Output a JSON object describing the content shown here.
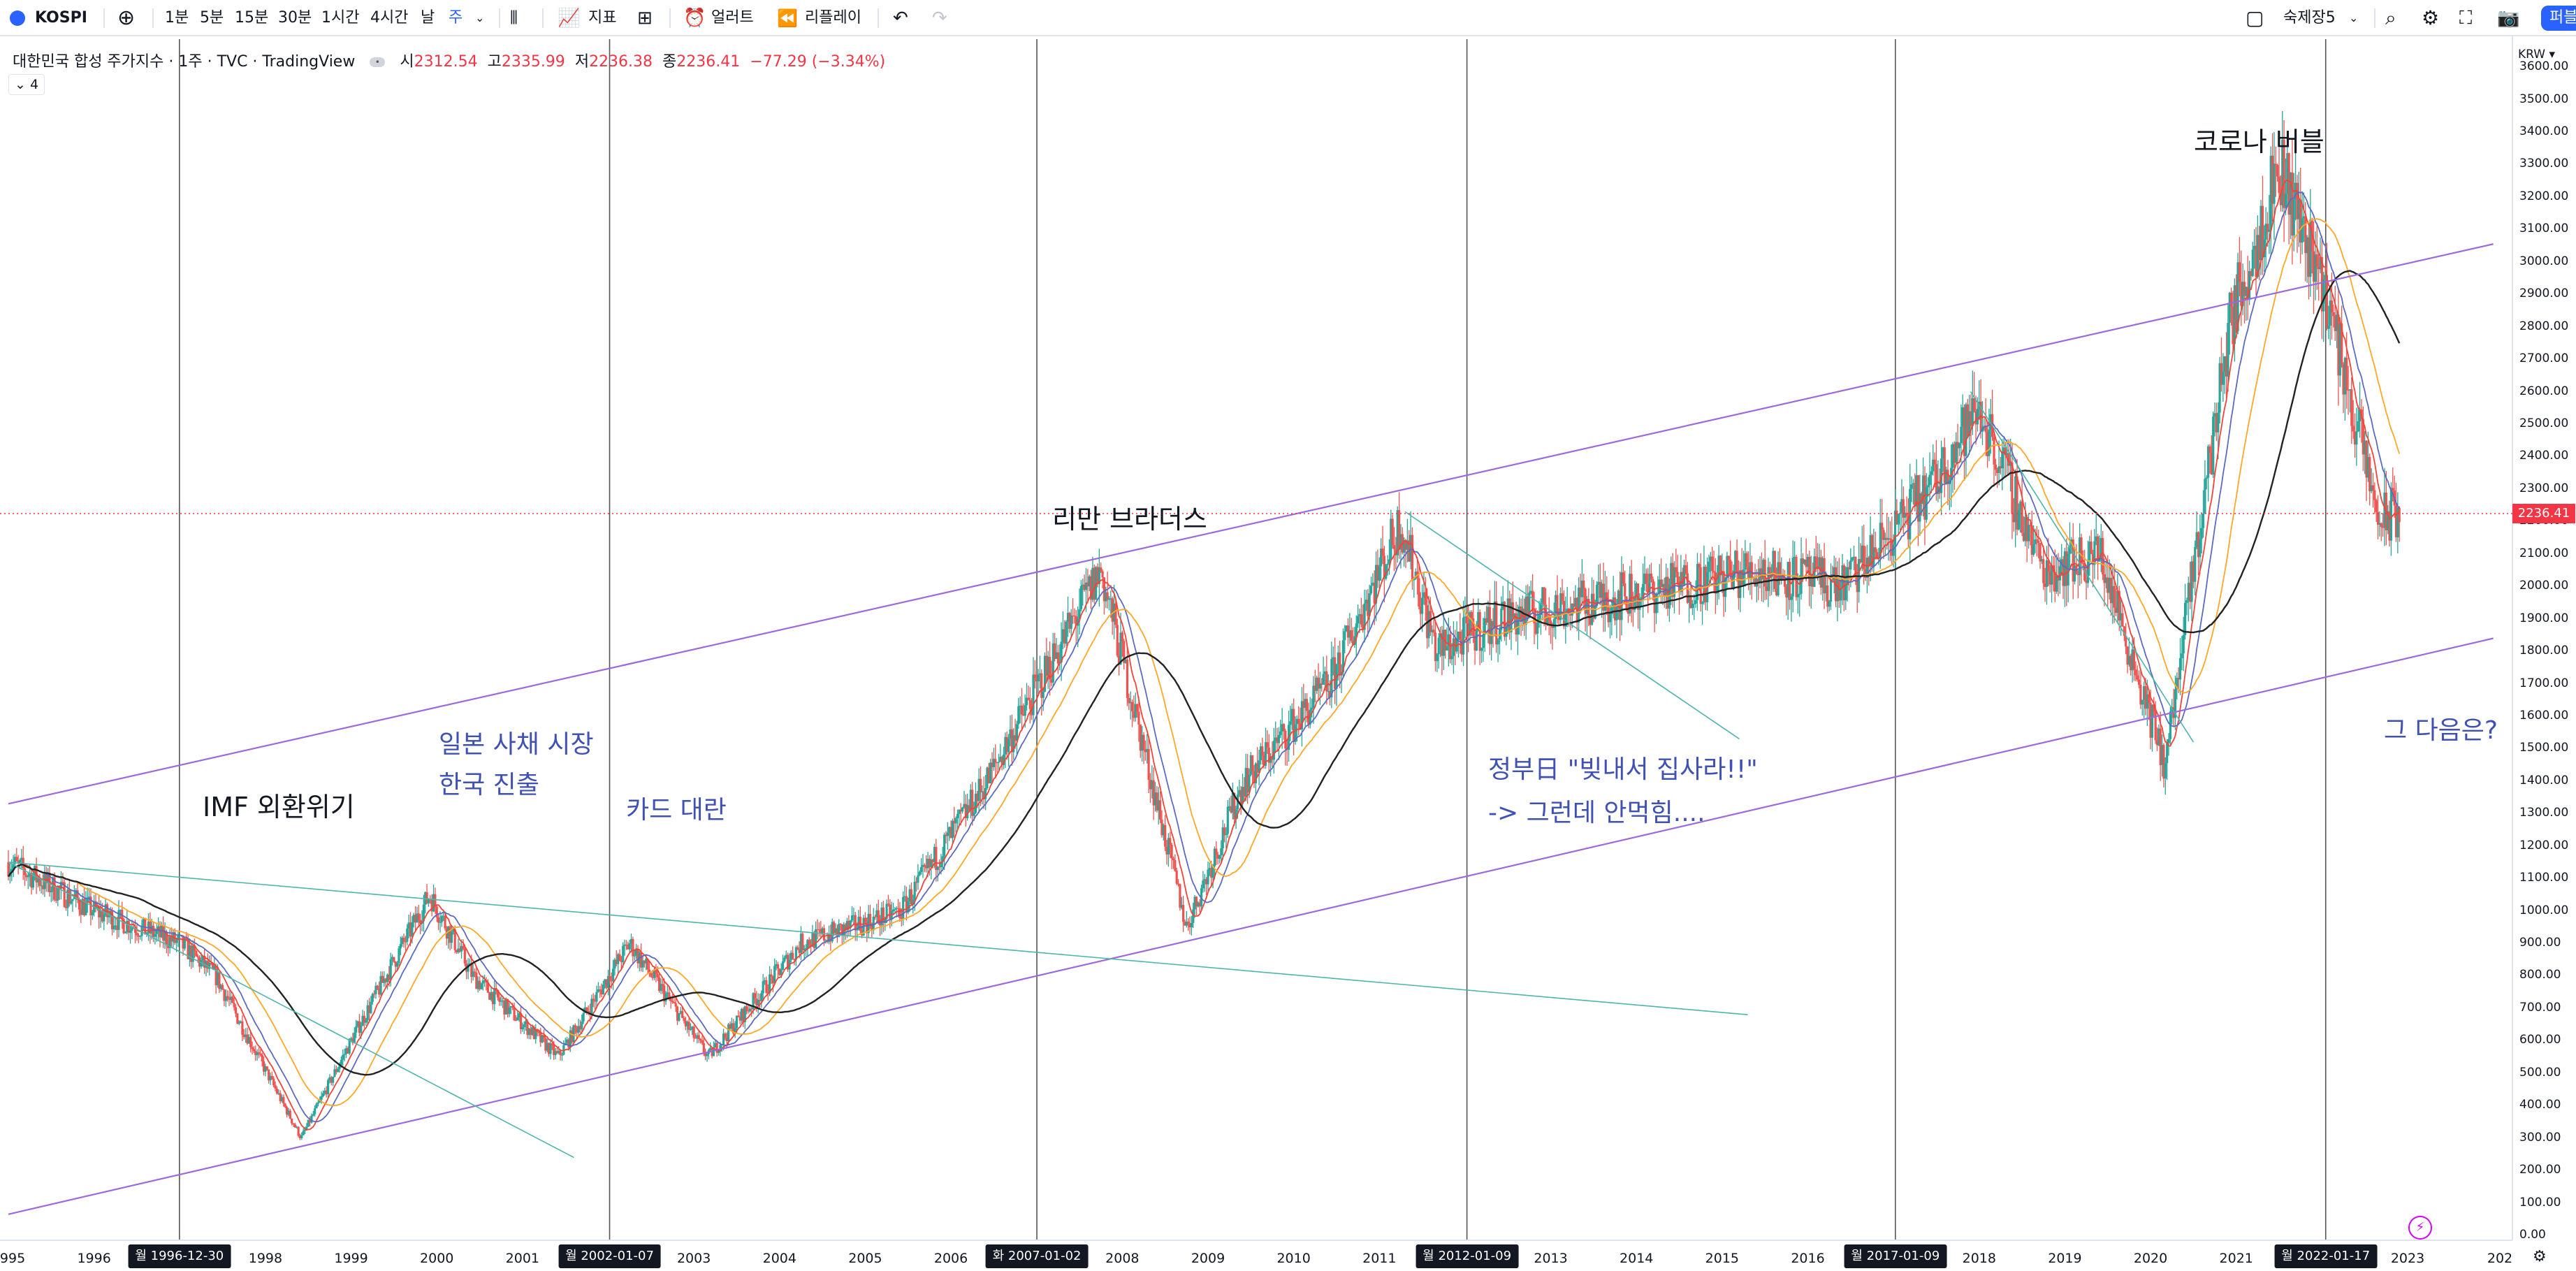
{
  "toolbar": {
    "symbol": "KOSPI",
    "intervals": [
      "1분",
      "5분",
      "15분",
      "30분",
      "1시간",
      "4시간",
      "날",
      "주"
    ],
    "active_interval": "주",
    "indicators_label": "지표",
    "alert_label": "얼러트",
    "replay_label": "리플레이",
    "layout_name": "숙제장5",
    "publish_label": "퍼블"
  },
  "legend": {
    "title": "대한민국 합성 주가지수 · 1주 · TVC · TradingView",
    "open_label": "시",
    "open": "2312.54",
    "high_label": "고",
    "high": "2335.99",
    "low_label": "저",
    "low": "2236.38",
    "close_label": "종",
    "close": "2236.41",
    "change": "−77.29 (−3.34%)",
    "collapse_count": "4"
  },
  "annotations": {
    "imf": "IMF 외환위기",
    "japan_1": "일본 사채 시장",
    "japan_2": "한국 진출",
    "card": "카드 대란",
    "lehman": "리만 브라더스",
    "gov_1": "정부日 \"빚내서 집사라!!\"",
    "gov_2": "-> 그런데 안먹힘....",
    "corona": "코로나 버블",
    "next": "그 다음은?"
  },
  "colors": {
    "candle_up": "#26a69a",
    "candle_down": "#ef5350",
    "channel": "#9c6ade",
    "trend": "#4db6ac",
    "ma_red": "#f44336",
    "ma_blue": "#5c6bc0",
    "ma_orange": "#ffa726",
    "ma_black": "#222222",
    "vline": "#555555",
    "highlight": "#2962ff"
  },
  "price_axis": {
    "currency": "KRW",
    "last_price": "2236.41",
    "labels": [
      "3600.00",
      "3500.00",
      "3400.00",
      "3300.00",
      "3200.00",
      "3100.00",
      "3000.00",
      "2900.00",
      "2800.00",
      "2700.00",
      "2600.00",
      "2500.00",
      "2400.00",
      "2300.00",
      "2200.00",
      "2100.00",
      "2000.00",
      "1900.00",
      "1800.00",
      "1700.00",
      "1600.00",
      "1500.00",
      "1400.00",
      "1300.00",
      "1200.00",
      "1100.00",
      "1000.00",
      "900.00",
      "800.00",
      "700.00",
      "600.00",
      "500.00",
      "400.00",
      "300.00",
      "200.00",
      "100.00",
      "0.00"
    ]
  },
  "time_axis": {
    "years": [
      "1995",
      "1996",
      "1998",
      "1999",
      "2000",
      "2001",
      "2003",
      "2004",
      "2005",
      "2006",
      "2008",
      "2009",
      "2010",
      "2011",
      "2013",
      "2014",
      "2015",
      "2016",
      "2018",
      "2019",
      "2020",
      "2021",
      "2023",
      "202"
    ],
    "highlighted": [
      "월 1996-12-30",
      "월 2002-01-07",
      "화 2007-01-02",
      "월 2012-01-09",
      "월 2017-01-09",
      "월 2022-01-17"
    ]
  },
  "chart_data": {
    "type": "candlestick",
    "timeframe": "1주",
    "y_range": [
      0,
      3600
    ],
    "x_range": [
      "1995",
      "2023"
    ],
    "series": [
      {
        "name": "KOSPI",
        "x": [
          "1995-01",
          "1996-01",
          "1997-01",
          "1997-06",
          "1998-06",
          "1999-01",
          "1999-12",
          "2000-06",
          "2001-06",
          "2002-04",
          "2003-03",
          "2004-04",
          "2005-06",
          "2006-06",
          "2007-10",
          "2008-10",
          "2009-06",
          "2010-06",
          "2011-04",
          "2011-09",
          "2012-06",
          "2013-06",
          "2014-06",
          "2015-06",
          "2016-06",
          "2017-06",
          "2018-01",
          "2018-10",
          "2019-06",
          "2020-03",
          "2020-12",
          "2021-07",
          "2022-01",
          "2022-09",
          "2022-12"
        ],
        "values": [
          1150,
          1000,
          900,
          800,
          300,
          600,
          1050,
          800,
          550,
          900,
          550,
          900,
          1000,
          1400,
          2050,
          950,
          1400,
          1700,
          2200,
          1800,
          1900,
          1950,
          2000,
          2050,
          2000,
          2300,
          2550,
          2050,
          2100,
          1450,
          2800,
          3300,
          2950,
          2200,
          2236
        ]
      }
    ]
  }
}
